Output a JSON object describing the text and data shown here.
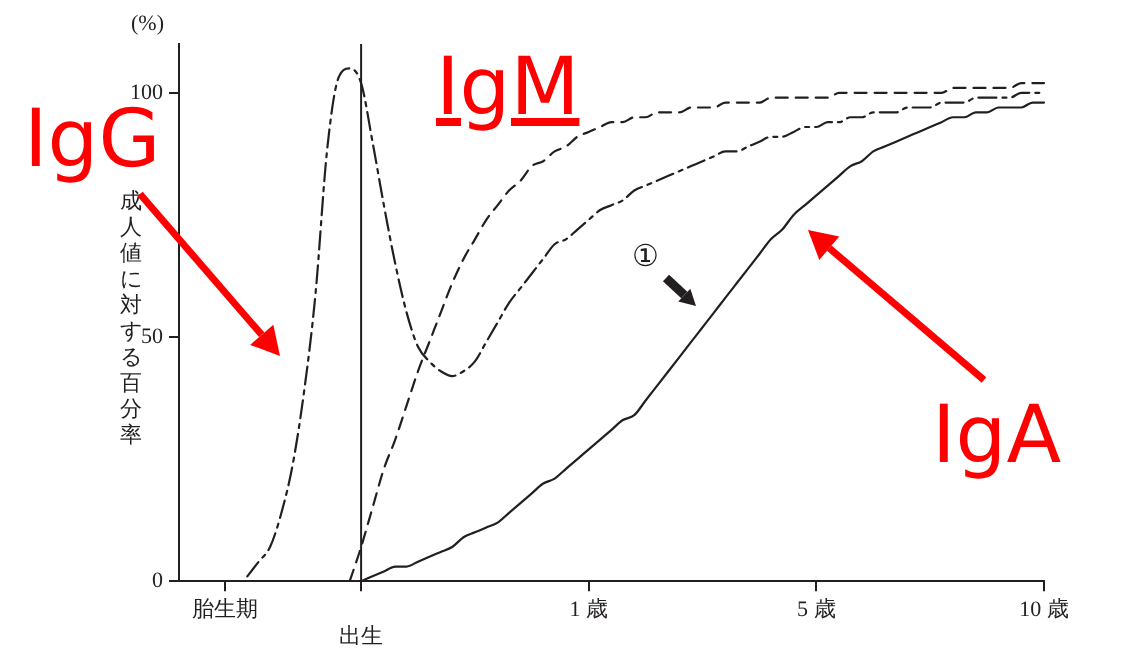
{
  "chart_data": {
    "type": "line",
    "ylabel": "成人値に対する百分率",
    "categories": [
      null,
      null,
      null,
      null,
      "胎生期",
      null,
      null,
      null,
      null,
      null,
      null,
      null,
      null,
      null,
      null,
      null,
      "出生",
      null,
      null,
      null,
      null,
      null,
      null,
      null,
      null,
      null,
      null,
      null,
      null,
      null,
      null,
      null,
      null,
      null,
      null,
      null,
      "1 歳",
      null,
      null,
      null,
      null,
      null,
      null,
      null,
      null,
      null,
      null,
      null,
      null,
      null,
      null,
      null,
      null,
      null,
      null,
      null,
      "5 歳",
      null,
      null,
      null,
      null,
      null,
      null,
      null,
      null,
      null,
      null,
      null,
      null,
      null,
      null,
      null,
      null,
      null,
      null,
      null,
      "10 歳"
    ],
    "ylim": [
      0,
      110
    ],
    "yticks": [
      0,
      50,
      100
    ],
    "grid": false,
    "marker": "none",
    "ref_lines": [
      {
        "axis": "x",
        "value": "出生",
        "color": "#231f20"
      }
    ],
    "annotations": [
      "(%)",
      "①"
    ],
    "series": [
      {
        "name": "IgG",
        "color": "#231f20",
        "line_style": "dashdot",
        "values": [
          null,
          null,
          null,
          null,
          null,
          null,
          1,
          4,
          7,
          14,
          24,
          39,
          59,
          88,
          103,
          105,
          102,
          90,
          77,
          65,
          55,
          48,
          45,
          43,
          42,
          43,
          45,
          49,
          53,
          57,
          60,
          63,
          66,
          69,
          70,
          72,
          74,
          76,
          77,
          78,
          80,
          81,
          82,
          83,
          84,
          85,
          86,
          87,
          88,
          88,
          89,
          90,
          91,
          91,
          92,
          93,
          93,
          94,
          94,
          95,
          95,
          96,
          96,
          96,
          97,
          97,
          97,
          98,
          98,
          98,
          99,
          99,
          99,
          99,
          100,
          100,
          100
        ]
      },
      {
        "name": "IgM",
        "color": "#231f20",
        "line_style": "dashed",
        "values": [
          null,
          null,
          null,
          null,
          null,
          null,
          null,
          null,
          null,
          null,
          null,
          null,
          null,
          null,
          null,
          0,
          7,
          15,
          23,
          29,
          36,
          43,
          49,
          55,
          61,
          66,
          70,
          74,
          77,
          80,
          82,
          85,
          86,
          88,
          89,
          91,
          92,
          93,
          94,
          94,
          95,
          95,
          96,
          96,
          96,
          97,
          97,
          97,
          98,
          98,
          98,
          98,
          99,
          99,
          99,
          99,
          99,
          99,
          100,
          100,
          100,
          100,
          100,
          100,
          100,
          100,
          100,
          100,
          101,
          101,
          101,
          101,
          101,
          101,
          102,
          102,
          102
        ]
      },
      {
        "name": "IgA",
        "color": "#231f20",
        "line_style": "solid",
        "values": [
          null,
          null,
          null,
          null,
          null,
          null,
          null,
          null,
          null,
          null,
          null,
          null,
          null,
          null,
          null,
          null,
          0,
          1,
          2,
          3,
          3,
          4,
          5,
          6,
          7,
          9,
          10,
          11,
          12,
          14,
          16,
          18,
          20,
          21,
          23,
          25,
          27,
          29,
          31,
          33,
          34,
          37,
          40,
          43,
          46,
          49,
          52,
          55,
          58,
          61,
          64,
          67,
          70,
          72,
          75,
          77,
          79,
          81,
          83,
          85,
          86,
          88,
          89,
          90,
          91,
          92,
          93,
          94,
          95,
          95,
          96,
          96,
          97,
          97,
          97,
          98,
          98
        ]
      }
    ]
  }
}
